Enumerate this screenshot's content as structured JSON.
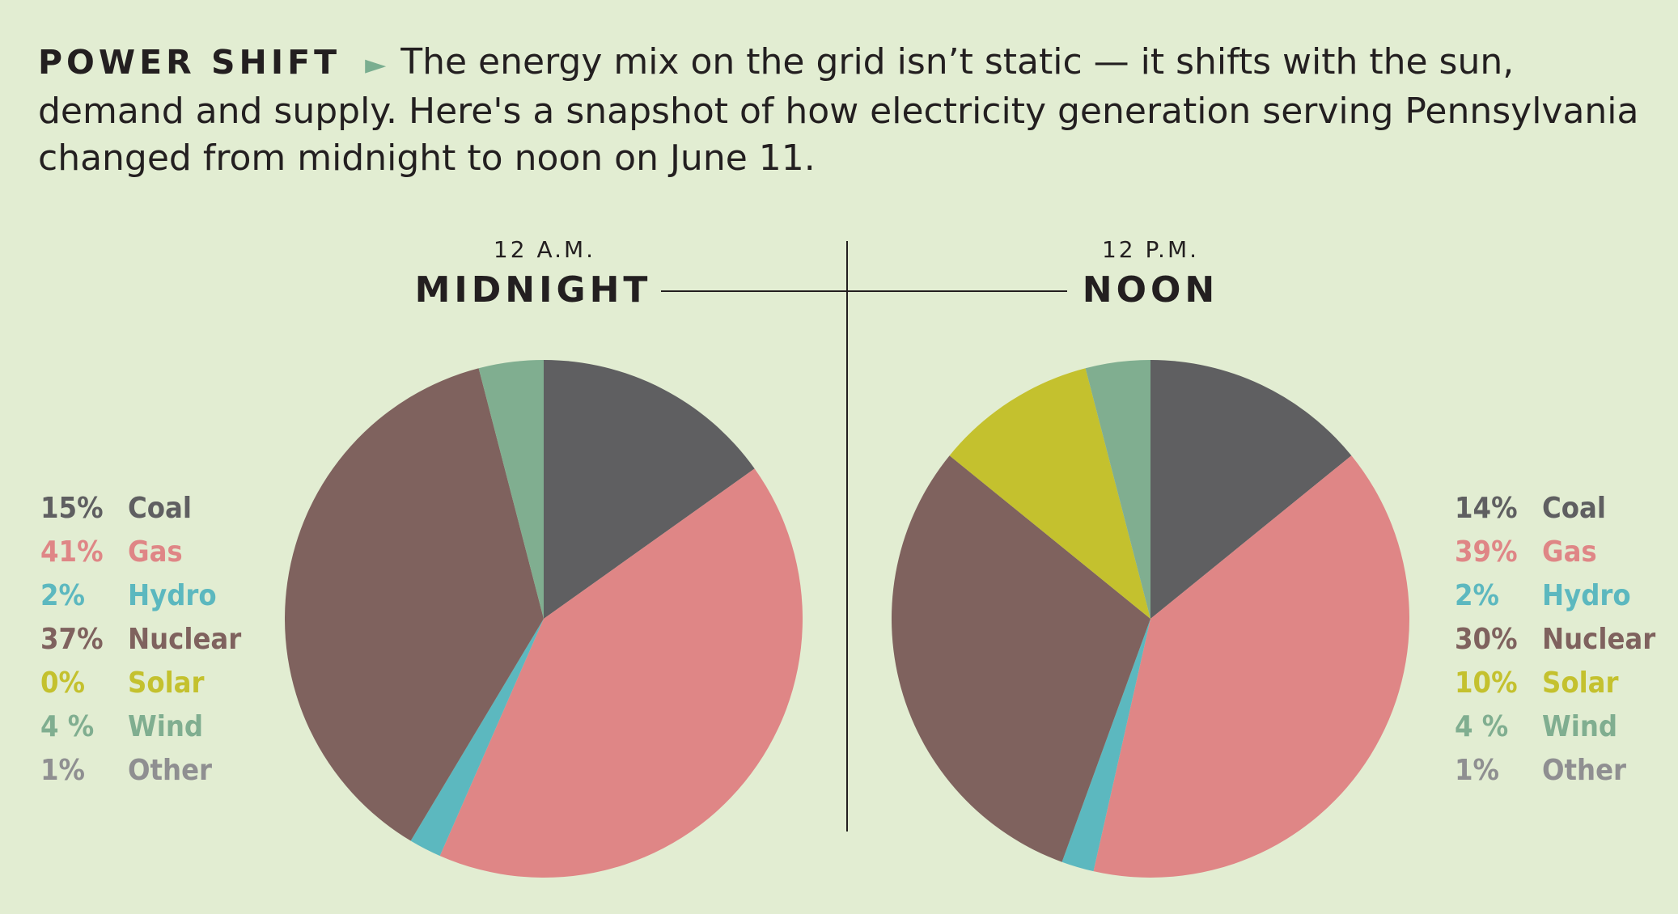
{
  "header": {
    "kicker": "POWER SHIFT",
    "arrow": "►",
    "text": "The energy mix on the grid isn’t static — it shifts with the sun, demand and supply. Here's a snapshot of how electricity generation serving Pennsylvania changed from midnight to noon on June 11."
  },
  "midnight": {
    "time": "12 A.M.",
    "name": "MIDNIGHT"
  },
  "noon": {
    "time": "12 P.M.",
    "name": "NOON"
  },
  "colors": {
    "Coal": "#5f5f61",
    "Gas": "#df8686",
    "Hydro": "#5cb8bf",
    "Nuclear": "#7f625e",
    "Solar": "#c4c12e",
    "Wind": "#80ae90",
    "Other": "#8f8f91"
  },
  "chart_data": [
    {
      "type": "pie",
      "title": "MIDNIGHT",
      "subtitle": "12 A.M.",
      "categories": [
        "Coal",
        "Gas",
        "Hydro",
        "Nuclear",
        "Solar",
        "Wind",
        "Other"
      ],
      "labels": [
        "15%",
        "41%",
        "2%",
        "37%",
        "0%",
        "4 %",
        "1%"
      ],
      "values": [
        15,
        41,
        2,
        37,
        0,
        4,
        1
      ],
      "legend_position": "left"
    },
    {
      "type": "pie",
      "title": "NOON",
      "subtitle": "12 P.M.",
      "categories": [
        "Coal",
        "Gas",
        "Hydro",
        "Nuclear",
        "Solar",
        "Wind",
        "Other"
      ],
      "labels": [
        "14%",
        "39%",
        "2%",
        "30%",
        "10%",
        "4 %",
        "1%"
      ],
      "values": [
        14,
        39,
        2,
        30,
        10,
        4,
        1
      ],
      "legend_position": "right"
    }
  ]
}
